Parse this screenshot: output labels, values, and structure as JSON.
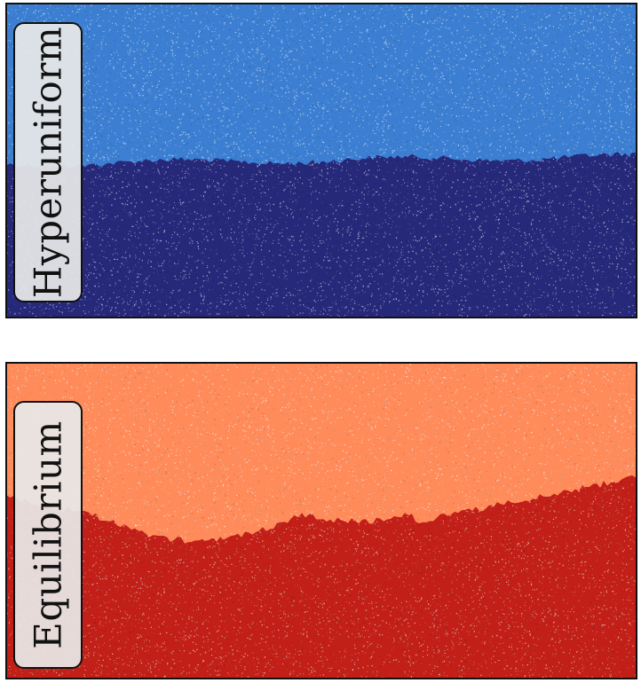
{
  "panels": [
    {
      "label": "Hyperuniform",
      "upper_phase_color": "#3c7fd2",
      "lower_phase_color": "#26287a",
      "icon": "particle-configuration-image"
    },
    {
      "label": "Equilibrium",
      "upper_phase_color": "#ff8b5a",
      "lower_phase_color": "#c11f17",
      "icon": "particle-configuration-image"
    }
  ]
}
